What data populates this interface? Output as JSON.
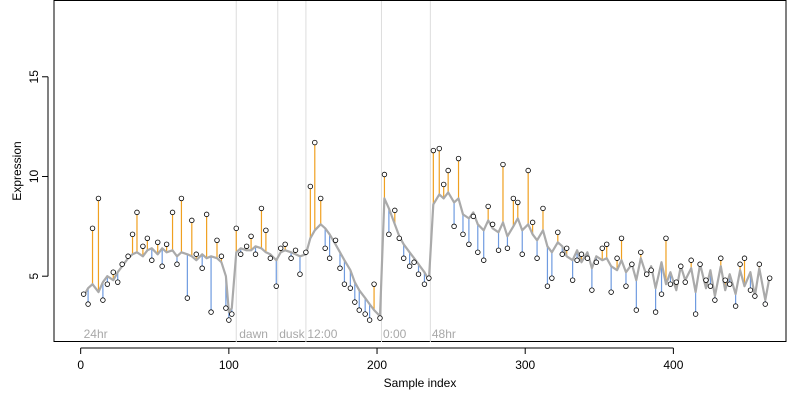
{
  "chart_data": {
    "type": "line",
    "title": "",
    "xlabel": "Sample index",
    "ylabel": "Expression",
    "xlim": [
      -18,
      476
    ],
    "ylim": [
      1.7,
      18.8
    ],
    "x_ticks": [
      0,
      100,
      200,
      300,
      400
    ],
    "y_ticks": [
      5,
      10,
      15
    ],
    "grid": false,
    "legend": "none",
    "region_lines": [
      105,
      133,
      152,
      203,
      236
    ],
    "region_labels": [
      {
        "text": "24hr",
        "x": 2
      },
      {
        "text": "dawn",
        "x": 107
      },
      {
        "text": "dusk",
        "x": 134
      },
      {
        "text": "12:00",
        "x": 153
      },
      {
        "text": "0:00",
        "x": 204
      },
      {
        "text": "48hr",
        "x": 237
      }
    ],
    "colors": {
      "fit_line": "#aaaaaa",
      "above_residual": "#f0a020",
      "below_residual": "#6f9be0",
      "point_fill": "#ffffff",
      "point_stroke": "#000000",
      "region_line": "#dddddd"
    },
    "series": [
      {
        "name": "",
        "x": [
          2,
          5,
          8,
          12,
          15,
          18,
          22,
          25,
          28,
          32,
          35,
          38,
          42,
          45,
          48,
          52,
          55,
          58,
          62,
          65,
          68,
          72,
          75,
          78,
          82,
          85,
          88,
          92,
          95,
          98,
          100,
          102,
          105,
          108,
          112,
          115,
          118,
          122,
          125,
          128,
          132,
          135,
          138,
          142,
          145,
          148,
          152,
          155,
          158,
          162,
          165,
          168,
          172,
          175,
          178,
          182,
          185,
          188,
          192,
          195,
          198,
          202,
          205,
          208,
          212,
          215,
          218,
          222,
          225,
          228,
          232,
          235,
          238,
          242,
          245,
          248,
          252,
          255,
          258,
          262,
          265,
          268,
          272,
          275,
          278,
          282,
          285,
          288,
          292,
          295,
          298,
          302,
          305,
          308,
          312,
          315,
          318,
          322,
          325,
          328,
          332,
          335,
          338,
          342,
          345,
          348,
          352,
          355,
          358,
          362,
          365,
          368,
          372,
          375,
          378,
          382,
          385,
          388,
          392,
          395,
          398,
          402,
          405,
          408,
          412,
          415,
          418,
          422,
          425,
          428,
          432,
          435,
          438,
          442,
          445,
          448,
          452,
          455,
          458,
          462,
          465
        ],
        "fitted": [
          4.0,
          4.4,
          4.6,
          4.2,
          4.7,
          5.0,
          4.8,
          5.2,
          5.5,
          5.9,
          6.1,
          6.2,
          6.0,
          6.3,
          6.4,
          6.1,
          6.4,
          6.2,
          6.3,
          6.0,
          6.2,
          6.1,
          6.0,
          5.8,
          6.1,
          5.9,
          6.0,
          5.9,
          5.7,
          5.0,
          3.2,
          3.4,
          6.2,
          6.4,
          6.3,
          6.3,
          6.5,
          6.4,
          6.2,
          6.1,
          5.8,
          6.2,
          6.3,
          6.2,
          6.1,
          6.0,
          6.1,
          6.9,
          7.3,
          7.6,
          7.4,
          7.1,
          6.6,
          6.2,
          5.8,
          5.3,
          4.7,
          4.3,
          3.9,
          3.6,
          3.3,
          3.0,
          8.9,
          8.4,
          7.6,
          7.0,
          6.6,
          6.2,
          5.9,
          5.6,
          5.2,
          4.8,
          8.6,
          9.1,
          8.9,
          9.2,
          8.7,
          8.9,
          8.1,
          7.9,
          8.2,
          7.6,
          7.3,
          7.8,
          7.4,
          7.2,
          7.7,
          7.0,
          7.5,
          7.9,
          7.3,
          7.6,
          7.1,
          6.8,
          7.3,
          6.5,
          6.2,
          6.7,
          6.5,
          6.0,
          5.8,
          6.3,
          5.7,
          6.2,
          5.4,
          6.0,
          5.8,
          5.9,
          5.5,
          5.3,
          5.8,
          5.2,
          5.6,
          4.8,
          5.9,
          5.0,
          5.5,
          4.4,
          5.7,
          4.6,
          5.2,
          4.3,
          5.5,
          4.8,
          5.4,
          4.2,
          5.6,
          4.4,
          5.3,
          4.0,
          5.5,
          4.3,
          5.1,
          4.1,
          5.3,
          4.5,
          5.2,
          4.0,
          5.4,
          3.8,
          5.0
        ],
        "values": [
          4.1,
          3.6,
          7.4,
          8.9,
          3.8,
          4.6,
          5.2,
          4.7,
          5.6,
          6.0,
          7.1,
          8.2,
          6.5,
          6.9,
          5.8,
          6.7,
          5.5,
          6.6,
          8.2,
          5.6,
          8.9,
          3.9,
          7.8,
          6.1,
          5.4,
          8.1,
          3.2,
          6.8,
          6.0,
          3.4,
          2.8,
          3.1,
          7.4,
          6.1,
          6.5,
          7.0,
          6.1,
          8.4,
          7.3,
          5.9,
          4.5,
          6.4,
          6.6,
          5.9,
          6.3,
          5.1,
          6.2,
          9.5,
          11.7,
          8.9,
          6.4,
          5.9,
          6.8,
          5.4,
          4.6,
          4.4,
          3.7,
          3.3,
          3.1,
          2.8,
          4.6,
          2.9,
          10.1,
          7.1,
          8.3,
          6.9,
          5.9,
          5.5,
          5.7,
          5.1,
          4.6,
          4.9,
          11.3,
          11.4,
          9.6,
          10.3,
          7.5,
          10.9,
          7.1,
          6.6,
          8.0,
          6.2,
          5.8,
          8.5,
          7.6,
          6.3,
          10.6,
          6.4,
          8.9,
          8.7,
          6.1,
          10.3,
          7.7,
          5.9,
          8.4,
          4.5,
          4.9,
          7.2,
          6.1,
          6.4,
          4.8,
          5.8,
          6.1,
          5.9,
          4.3,
          5.7,
          6.4,
          6.6,
          4.2,
          5.9,
          6.9,
          4.5,
          5.6,
          3.3,
          6.2,
          5.1,
          5.3,
          3.2,
          4.1,
          6.9,
          4.6,
          4.7,
          5.5,
          4.7,
          5.8,
          3.1,
          5.6,
          4.8,
          4.5,
          3.8,
          5.9,
          4.8,
          4.6,
          3.5,
          5.6,
          5.9,
          4.3,
          4.0,
          5.6,
          3.6,
          4.9
        ]
      }
    ]
  }
}
